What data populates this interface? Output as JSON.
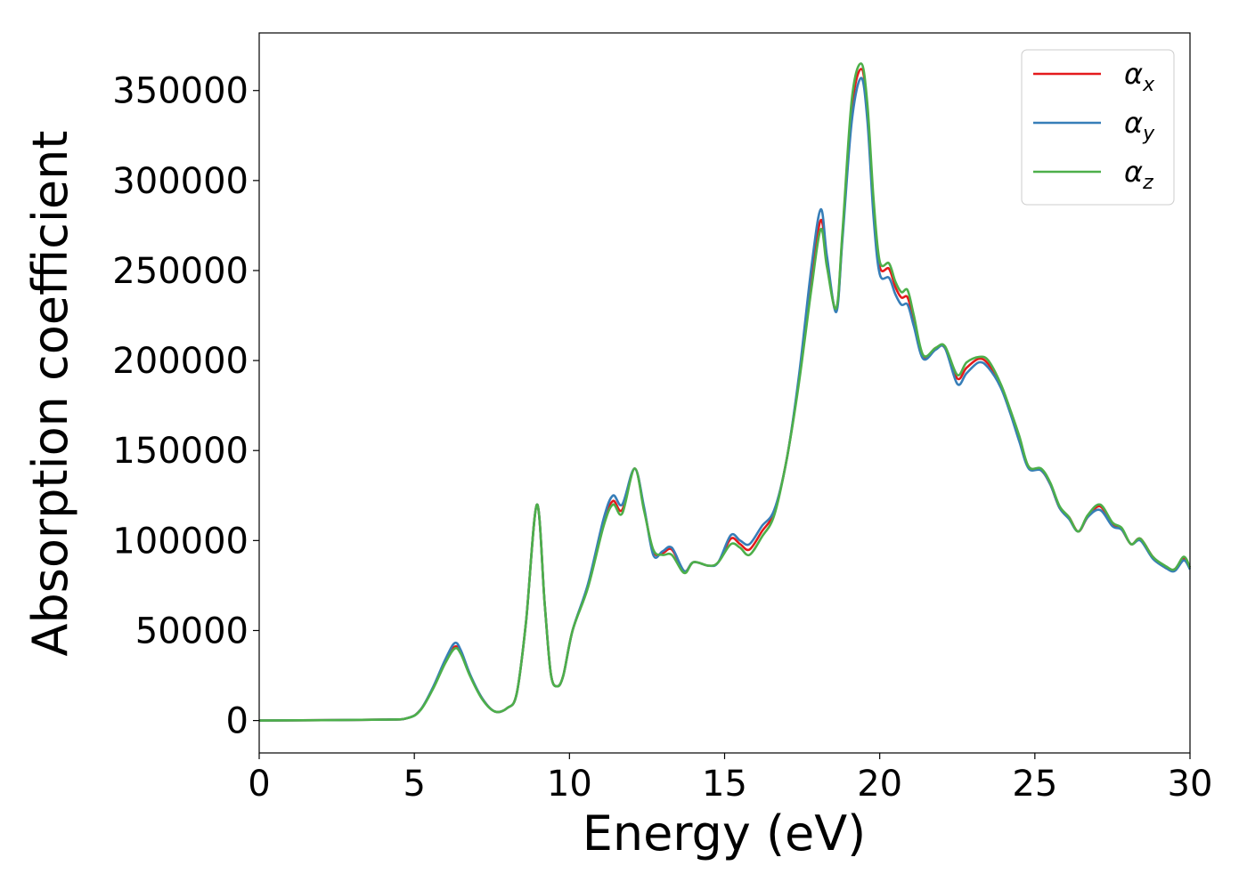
{
  "chart_data": {
    "type": "line",
    "title": "",
    "xlabel": "Energy (eV)",
    "ylabel": "Absorption coefficient",
    "xlim": [
      0,
      30
    ],
    "ylim": [
      -18000,
      382000
    ],
    "xticks": [
      0,
      5,
      10,
      15,
      20,
      25,
      30
    ],
    "xtick_labels": [
      "0",
      "5",
      "10",
      "15",
      "20",
      "25",
      "30"
    ],
    "yticks": [
      0,
      50000,
      100000,
      150000,
      200000,
      250000,
      300000,
      350000
    ],
    "ytick_labels": [
      "0",
      "50000",
      "100000",
      "150000",
      "200000",
      "250000",
      "300000",
      "350000"
    ],
    "grid": false,
    "legend_position": "top-right",
    "series": [
      {
        "name": "α_x",
        "label_main": "α",
        "label_sub": "x",
        "color": "#e41a1c",
        "points": [
          [
            0,
            0
          ],
          [
            4,
            500
          ],
          [
            4.8,
            1500
          ],
          [
            5.2,
            6000
          ],
          [
            5.6,
            18000
          ],
          [
            6.0,
            33000
          ],
          [
            6.3,
            41000
          ],
          [
            6.5,
            38000
          ],
          [
            6.8,
            25000
          ],
          [
            7.2,
            12000
          ],
          [
            7.6,
            5000
          ],
          [
            8.0,
            7000
          ],
          [
            8.3,
            15000
          ],
          [
            8.6,
            55000
          ],
          [
            8.95,
            120000
          ],
          [
            9.2,
            65000
          ],
          [
            9.4,
            26000
          ],
          [
            9.6,
            19000
          ],
          [
            9.8,
            25000
          ],
          [
            10.1,
            50000
          ],
          [
            10.6,
            75000
          ],
          [
            11.1,
            110000
          ],
          [
            11.4,
            122000
          ],
          [
            11.7,
            117000
          ],
          [
            12.1,
            140000
          ],
          [
            12.4,
            118000
          ],
          [
            12.7,
            94000
          ],
          [
            13.0,
            93000
          ],
          [
            13.3,
            95000
          ],
          [
            13.7,
            83000
          ],
          [
            14.0,
            88000
          ],
          [
            14.5,
            86000
          ],
          [
            14.8,
            88000
          ],
          [
            15.2,
            101000
          ],
          [
            15.5,
            98000
          ],
          [
            15.8,
            95000
          ],
          [
            16.2,
            105000
          ],
          [
            16.6,
            116000
          ],
          [
            17.0,
            145000
          ],
          [
            17.4,
            190000
          ],
          [
            17.8,
            245000
          ],
          [
            18.1,
            278000
          ],
          [
            18.3,
            255000
          ],
          [
            18.6,
            228000
          ],
          [
            18.8,
            270000
          ],
          [
            19.1,
            340000
          ],
          [
            19.4,
            362000
          ],
          [
            19.6,
            340000
          ],
          [
            19.8,
            285000
          ],
          [
            20.0,
            252000
          ],
          [
            20.3,
            251000
          ],
          [
            20.5,
            241000
          ],
          [
            20.7,
            235000
          ],
          [
            20.9,
            235000
          ],
          [
            21.1,
            222000
          ],
          [
            21.4,
            202000
          ],
          [
            21.8,
            207000
          ],
          [
            22.1,
            207000
          ],
          [
            22.5,
            190000
          ],
          [
            22.8,
            196000
          ],
          [
            23.2,
            201000
          ],
          [
            23.5,
            198000
          ],
          [
            23.9,
            186000
          ],
          [
            24.2,
            172000
          ],
          [
            24.5,
            156000
          ],
          [
            24.8,
            141000
          ],
          [
            25.2,
            139000
          ],
          [
            25.5,
            131000
          ],
          [
            25.8,
            118000
          ],
          [
            26.1,
            113000
          ],
          [
            26.4,
            105000
          ],
          [
            26.7,
            113000
          ],
          [
            27.1,
            119000
          ],
          [
            27.5,
            109000
          ],
          [
            27.8,
            106000
          ],
          [
            28.1,
            98000
          ],
          [
            28.4,
            101000
          ],
          [
            28.8,
            91000
          ],
          [
            29.2,
            85000
          ],
          [
            29.5,
            84000
          ],
          [
            29.8,
            90000
          ],
          [
            30,
            85000
          ]
        ]
      },
      {
        "name": "α_y",
        "label_main": "α",
        "label_sub": "y",
        "color": "#377eb8",
        "points": [
          [
            0,
            0
          ],
          [
            4,
            500
          ],
          [
            4.8,
            1500
          ],
          [
            5.2,
            6000
          ],
          [
            5.6,
            18500
          ],
          [
            6.0,
            34000
          ],
          [
            6.3,
            43000
          ],
          [
            6.5,
            39000
          ],
          [
            6.8,
            25500
          ],
          [
            7.2,
            12000
          ],
          [
            7.6,
            5000
          ],
          [
            8.0,
            7000
          ],
          [
            8.3,
            15000
          ],
          [
            8.6,
            55000
          ],
          [
            8.95,
            120000
          ],
          [
            9.2,
            65000
          ],
          [
            9.4,
            26000
          ],
          [
            9.6,
            19000
          ],
          [
            9.8,
            25000
          ],
          [
            10.1,
            50000
          ],
          [
            10.6,
            76000
          ],
          [
            11.1,
            112000
          ],
          [
            11.4,
            125000
          ],
          [
            11.7,
            120000
          ],
          [
            12.1,
            140000
          ],
          [
            12.4,
            119000
          ],
          [
            12.7,
            92000
          ],
          [
            13.0,
            94000
          ],
          [
            13.3,
            96000
          ],
          [
            13.7,
            83000
          ],
          [
            14.0,
            88000
          ],
          [
            14.5,
            86000
          ],
          [
            14.8,
            88000
          ],
          [
            15.2,
            103000
          ],
          [
            15.5,
            100000
          ],
          [
            15.8,
            98000
          ],
          [
            16.2,
            108000
          ],
          [
            16.6,
            117000
          ],
          [
            17.0,
            145000
          ],
          [
            17.4,
            192000
          ],
          [
            17.8,
            252000
          ],
          [
            18.1,
            284000
          ],
          [
            18.3,
            258000
          ],
          [
            18.6,
            227000
          ],
          [
            18.8,
            268000
          ],
          [
            19.1,
            333000
          ],
          [
            19.4,
            357000
          ],
          [
            19.6,
            334000
          ],
          [
            19.8,
            280000
          ],
          [
            20.0,
            248000
          ],
          [
            20.3,
            246000
          ],
          [
            20.5,
            237000
          ],
          [
            20.7,
            231000
          ],
          [
            20.9,
            231000
          ],
          [
            21.1,
            219000
          ],
          [
            21.4,
            201000
          ],
          [
            21.8,
            206000
          ],
          [
            22.1,
            207000
          ],
          [
            22.5,
            187000
          ],
          [
            22.8,
            193000
          ],
          [
            23.2,
            199000
          ],
          [
            23.5,
            196000
          ],
          [
            23.9,
            185000
          ],
          [
            24.2,
            171000
          ],
          [
            24.5,
            155000
          ],
          [
            24.8,
            140000
          ],
          [
            25.2,
            139000
          ],
          [
            25.5,
            131000
          ],
          [
            25.8,
            118000
          ],
          [
            26.1,
            112000
          ],
          [
            26.4,
            105000
          ],
          [
            26.7,
            113000
          ],
          [
            27.1,
            117000
          ],
          [
            27.5,
            108000
          ],
          [
            27.8,
            106000
          ],
          [
            28.1,
            98000
          ],
          [
            28.4,
            100000
          ],
          [
            28.8,
            90000
          ],
          [
            29.2,
            85000
          ],
          [
            29.5,
            83000
          ],
          [
            29.8,
            89000
          ],
          [
            30,
            84000
          ]
        ]
      },
      {
        "name": "α_z",
        "label_main": "α",
        "label_sub": "z",
        "color": "#4daf4a",
        "points": [
          [
            0,
            0
          ],
          [
            4,
            500
          ],
          [
            4.8,
            1500
          ],
          [
            5.2,
            5800
          ],
          [
            5.6,
            17500
          ],
          [
            6.0,
            32000
          ],
          [
            6.3,
            40000
          ],
          [
            6.5,
            37000
          ],
          [
            6.8,
            24500
          ],
          [
            7.2,
            11500
          ],
          [
            7.6,
            5000
          ],
          [
            8.0,
            7000
          ],
          [
            8.3,
            15000
          ],
          [
            8.6,
            55000
          ],
          [
            8.95,
            120000
          ],
          [
            9.2,
            65000
          ],
          [
            9.4,
            26000
          ],
          [
            9.6,
            19000
          ],
          [
            9.8,
            25000
          ],
          [
            10.1,
            50000
          ],
          [
            10.6,
            74000
          ],
          [
            11.1,
            108000
          ],
          [
            11.4,
            120000
          ],
          [
            11.7,
            115000
          ],
          [
            12.1,
            140000
          ],
          [
            12.4,
            117000
          ],
          [
            12.7,
            95000
          ],
          [
            13.0,
            92000
          ],
          [
            13.3,
            92000
          ],
          [
            13.7,
            82000
          ],
          [
            14.0,
            88000
          ],
          [
            14.5,
            86000
          ],
          [
            14.8,
            88000
          ],
          [
            15.2,
            98000
          ],
          [
            15.5,
            96000
          ],
          [
            15.8,
            92000
          ],
          [
            16.2,
            102000
          ],
          [
            16.6,
            114000
          ],
          [
            17.0,
            145000
          ],
          [
            17.4,
            188000
          ],
          [
            17.8,
            240000
          ],
          [
            18.1,
            273000
          ],
          [
            18.3,
            252000
          ],
          [
            18.6,
            229000
          ],
          [
            18.8,
            272000
          ],
          [
            19.1,
            345000
          ],
          [
            19.4,
            365000
          ],
          [
            19.6,
            343000
          ],
          [
            19.8,
            290000
          ],
          [
            20.0,
            255000
          ],
          [
            20.3,
            254000
          ],
          [
            20.5,
            244000
          ],
          [
            20.7,
            238000
          ],
          [
            20.9,
            239000
          ],
          [
            21.1,
            225000
          ],
          [
            21.4,
            203000
          ],
          [
            21.8,
            207000
          ],
          [
            22.1,
            208000
          ],
          [
            22.5,
            192000
          ],
          [
            22.8,
            199000
          ],
          [
            23.2,
            202000
          ],
          [
            23.5,
            200000
          ],
          [
            23.9,
            187000
          ],
          [
            24.2,
            173000
          ],
          [
            24.5,
            158000
          ],
          [
            24.8,
            141000
          ],
          [
            25.2,
            140000
          ],
          [
            25.5,
            132000
          ],
          [
            25.8,
            119000
          ],
          [
            26.1,
            113000
          ],
          [
            26.4,
            105000
          ],
          [
            26.7,
            114000
          ],
          [
            27.1,
            120000
          ],
          [
            27.5,
            110000
          ],
          [
            27.8,
            107000
          ],
          [
            28.1,
            98000
          ],
          [
            28.4,
            101000
          ],
          [
            28.8,
            91000
          ],
          [
            29.2,
            86000
          ],
          [
            29.5,
            84000
          ],
          [
            29.8,
            91000
          ],
          [
            30,
            85000
          ]
        ]
      }
    ]
  }
}
